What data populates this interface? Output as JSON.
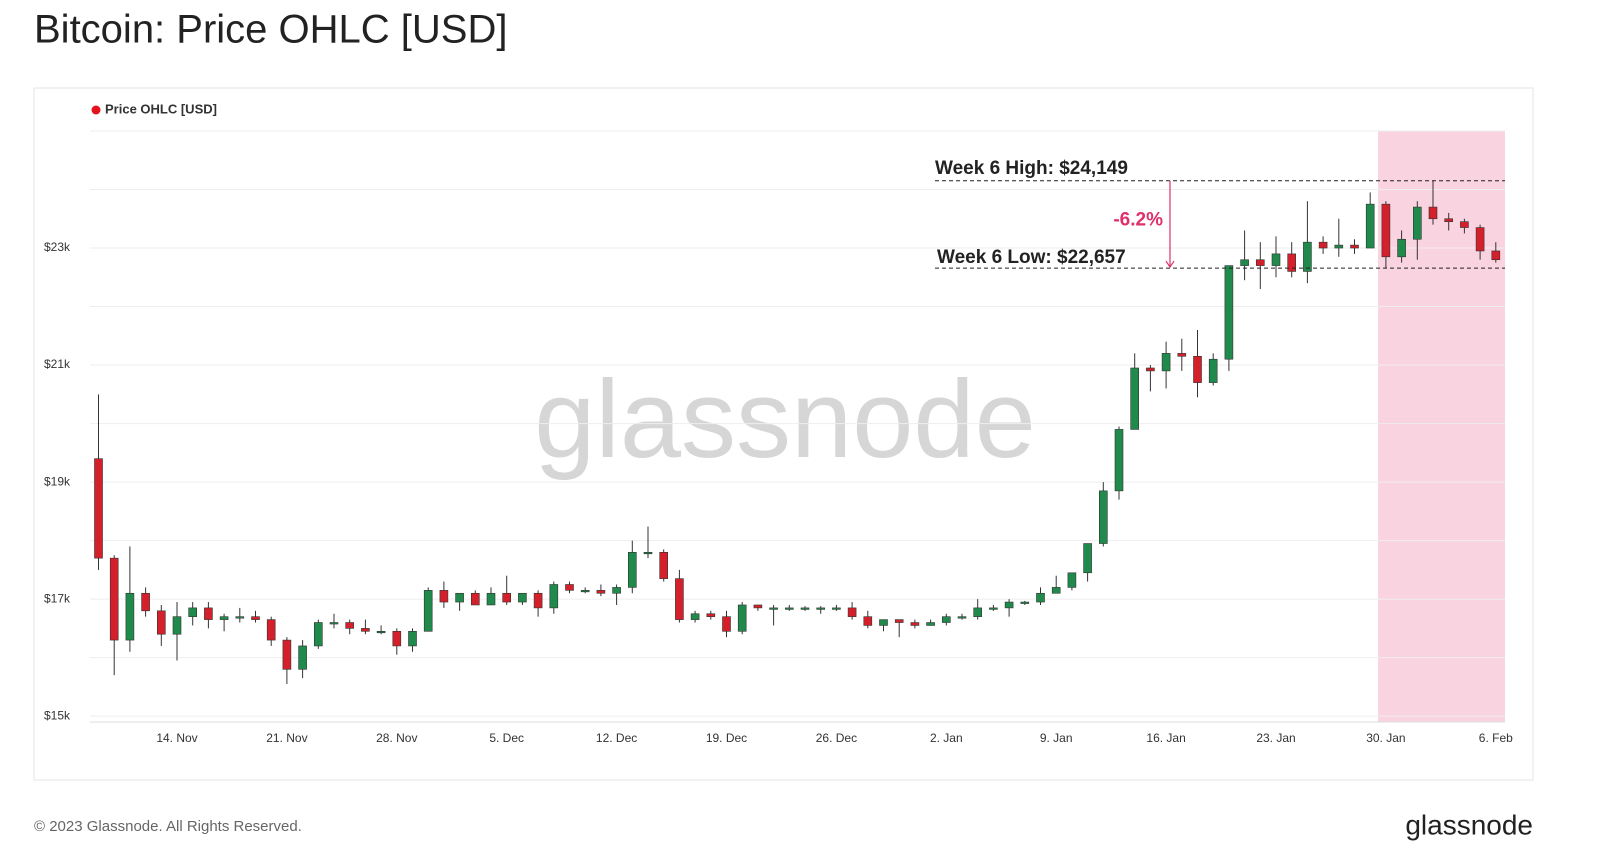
{
  "chart_data": {
    "type": "candlestick",
    "title": "Bitcoin: Price OHLC [USD]",
    "x": [
      "9. Nov",
      "10. Nov",
      "11. Nov",
      "12. Nov",
      "13. Nov",
      "14. Nov",
      "15. Nov",
      "16. Nov",
      "17. Nov",
      "18. Nov",
      "19. Nov",
      "20. Nov",
      "21. Nov",
      "22. Nov",
      "23. Nov",
      "24. Nov",
      "25. Nov",
      "26. Nov",
      "27. Nov",
      "28. Nov",
      "29. Nov",
      "30. Nov",
      "1. Dec",
      "2. Dec",
      "3. Dec",
      "4. Dec",
      "5. Dec",
      "6. Dec",
      "7. Dec",
      "8. Dec",
      "9. Dec",
      "10. Dec",
      "11. Dec",
      "12. Dec",
      "13. Dec",
      "14. Dec",
      "15. Dec",
      "16. Dec",
      "17. Dec",
      "18. Dec",
      "19. Dec",
      "20. Dec",
      "21. Dec",
      "22. Dec",
      "23. Dec",
      "24. Dec",
      "25. Dec",
      "26. Dec",
      "27. Dec",
      "28. Dec",
      "29. Dec",
      "30. Dec",
      "31. Dec",
      "1. Jan",
      "2. Jan",
      "3. Jan",
      "4. Jan",
      "5. Jan",
      "6. Jan",
      "7. Jan",
      "8. Jan",
      "9. Jan",
      "10. Jan",
      "11. Jan",
      "12. Jan",
      "13. Jan",
      "14. Jan",
      "15. Jan",
      "16. Jan",
      "17. Jan",
      "18. Jan",
      "19. Jan",
      "20. Jan",
      "21. Jan",
      "22. Jan",
      "23. Jan",
      "24. Jan",
      "25. Jan",
      "26. Jan",
      "27. Jan",
      "28. Jan",
      "29. Jan",
      "30. Jan",
      "31. Jan",
      "1. Feb",
      "2. Feb",
      "3. Feb",
      "4. Feb",
      "5. Feb",
      "6. Feb"
    ],
    "series": [
      {
        "name": "Price OHLC [USD]",
        "color": "#e3121b",
        "open": [
          19400,
          17700,
          16300,
          17100,
          16800,
          16400,
          16700,
          16850,
          16650,
          16700,
          16700,
          16650,
          16300,
          15800,
          16200,
          16600,
          16600,
          16500,
          16450,
          16450,
          16200,
          16450,
          17150,
          16950,
          17100,
          16900,
          17100,
          16950,
          17100,
          16850,
          17250,
          17150,
          17150,
          17100,
          17200,
          17800,
          17800,
          17350,
          16650,
          16750,
          16700,
          16450,
          16900,
          16850,
          16850,
          16850,
          16850,
          16850,
          16850,
          16700,
          16550,
          16650,
          16600,
          16550,
          16600,
          16700,
          16700,
          16850,
          16850,
          16950,
          16950,
          17100,
          17200,
          17450,
          17950,
          18850,
          19900,
          20950,
          20900,
          21200,
          21150,
          20700,
          21100,
          22700,
          22800,
          22700,
          22900,
          22600,
          23100,
          23000,
          23050,
          23000,
          23750,
          22850,
          23150,
          23700,
          23500,
          23450,
          23350,
          22950
        ],
        "high": [
          20500,
          17750,
          17900,
          17200,
          16900,
          16950,
          16950,
          16950,
          16750,
          16850,
          16800,
          16700,
          16350,
          16300,
          16650,
          16750,
          16650,
          16650,
          16550,
          16500,
          16500,
          17200,
          17300,
          17100,
          17150,
          17200,
          17400,
          17100,
          17150,
          17300,
          17300,
          17200,
          17250,
          17250,
          18000,
          18240,
          17850,
          17500,
          16800,
          16800,
          16800,
          16950,
          16900,
          16900,
          16900,
          16880,
          16880,
          16900,
          16950,
          16800,
          16650,
          16650,
          16650,
          16650,
          16750,
          16750,
          17000,
          16900,
          17000,
          16970,
          17200,
          17400,
          17450,
          17950,
          19000,
          19950,
          21200,
          21000,
          21400,
          21450,
          21600,
          21200,
          22700,
          23300,
          23100,
          23200,
          23100,
          23800,
          23200,
          23500,
          23150,
          23950,
          23800,
          23300,
          23800,
          24149,
          23600,
          23500,
          23400,
          23100
        ],
        "low": [
          17500,
          15700,
          16100,
          16700,
          16200,
          15950,
          16550,
          16500,
          16450,
          16600,
          16600,
          16200,
          15550,
          15650,
          16150,
          16500,
          16400,
          16400,
          16400,
          16050,
          16100,
          16450,
          16850,
          16800,
          16900,
          16900,
          16900,
          16900,
          16700,
          16750,
          17100,
          17100,
          17050,
          16900,
          17100,
          17700,
          17300,
          16600,
          16600,
          16650,
          16350,
          16400,
          16800,
          16550,
          16800,
          16800,
          16750,
          16800,
          16650,
          16500,
          16450,
          16350,
          16500,
          16550,
          16550,
          16650,
          16650,
          16800,
          16700,
          16900,
          16900,
          17100,
          17150,
          17300,
          17900,
          18700,
          19900,
          20550,
          20600,
          20900,
          20450,
          20650,
          20900,
          22450,
          22300,
          22500,
          22500,
          22400,
          22900,
          22850,
          22900,
          23000,
          22657,
          22750,
          22800,
          23400,
          23300,
          23250,
          22800,
          22750
        ],
        "close": [
          17700,
          16300,
          17100,
          16800,
          16400,
          16700,
          16850,
          16650,
          16700,
          16700,
          16650,
          16300,
          15800,
          16200,
          16600,
          16600,
          16500,
          16450,
          16450,
          16200,
          16450,
          17150,
          16950,
          17100,
          16900,
          17100,
          16950,
          17100,
          16850,
          17250,
          17150,
          17150,
          17100,
          17200,
          17800,
          17800,
          17350,
          16650,
          16750,
          16700,
          16450,
          16900,
          16850,
          16850,
          16850,
          16850,
          16850,
          16850,
          16700,
          16550,
          16650,
          16600,
          16550,
          16600,
          16700,
          16700,
          16850,
          16850,
          16950,
          16950,
          17100,
          17200,
          17450,
          17950,
          18850,
          19900,
          20950,
          20900,
          21200,
          21150,
          20700,
          21100,
          22700,
          22800,
          22700,
          22900,
          22600,
          23100,
          23000,
          23050,
          23000,
          23750,
          22850,
          23150,
          23700,
          23500,
          23450,
          23350,
          22950,
          22800
        ]
      }
    ],
    "up_color": "#1f8a4c",
    "down_color": "#d3202a",
    "ylim": [
      14900,
      25000
    ],
    "yticks": [
      {
        "value": 15000,
        "label": "$15k"
      },
      {
        "value": 17000,
        "label": "$17k"
      },
      {
        "value": 19000,
        "label": "$19k"
      },
      {
        "value": 21000,
        "label": "$21k"
      },
      {
        "value": 23000,
        "label": "$23k"
      }
    ],
    "minor_grid": [
      16000,
      18000,
      20000,
      22000,
      24000,
      25000
    ],
    "xticks": [
      "14. Nov",
      "21. Nov",
      "28. Nov",
      "5. Dec",
      "12. Dec",
      "19. Dec",
      "26. Dec",
      "2. Jan",
      "9. Jan",
      "16. Jan",
      "23. Jan",
      "30. Jan",
      "6. Feb"
    ],
    "highlight_from": "30. Jan",
    "highlight_color": "#f9d3df",
    "annotations": {
      "high": {
        "label": "Week 6 High: $24,149",
        "value": 24149
      },
      "low": {
        "label": "Week 6 Low: $22,657",
        "value": 22657
      },
      "change": "-6.2%",
      "change_color": "#e0306a"
    },
    "watermark": "glassnode",
    "grid": true,
    "legend": "top-left"
  },
  "footer": "© 2023 Glassnode. All Rights Reserved.",
  "logo": "glassnode"
}
